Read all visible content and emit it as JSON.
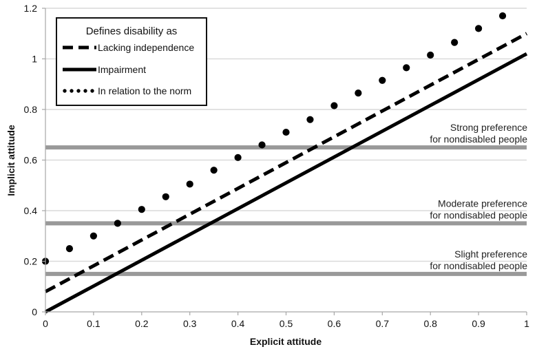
{
  "chart_data": {
    "type": "line",
    "xlabel": "Explicit attitude",
    "ylabel": "Implicit attitude",
    "xlim": [
      0,
      1
    ],
    "ylim": [
      0,
      1.2
    ],
    "x_ticks": [
      "0",
      "0.1",
      "0.2",
      "0.3",
      "0.4",
      "0.5",
      "0.6",
      "0.7",
      "0.8",
      "0.9",
      "1"
    ],
    "y_ticks": [
      "0",
      "0.2",
      "0.4",
      "0.6",
      "0.8",
      "1",
      "1.2"
    ],
    "grid": "horizontal",
    "legend": {
      "title": "Defines disability as",
      "placement": "top-left"
    },
    "series": [
      {
        "name": "Lacking independence",
        "style": "dashed",
        "color": "#000000",
        "x": [
          0,
          1
        ],
        "y": [
          0.08,
          1.1
        ]
      },
      {
        "name": "Impairment",
        "style": "solid",
        "color": "#000000",
        "x": [
          0,
          1
        ],
        "y": [
          0.0,
          1.02
        ]
      },
      {
        "name": "In relation to the norm",
        "style": "dotted",
        "color": "#000000",
        "x": [
          0,
          0.05,
          0.1,
          0.15,
          0.2,
          0.25,
          0.3,
          0.35,
          0.4,
          0.45,
          0.5,
          0.55,
          0.6,
          0.65,
          0.7,
          0.75,
          0.8,
          0.85,
          0.9,
          0.95
        ],
        "y": [
          0.2,
          0.25,
          0.3,
          0.35,
          0.405,
          0.455,
          0.505,
          0.56,
          0.61,
          0.66,
          0.71,
          0.76,
          0.815,
          0.865,
          0.915,
          0.965,
          1.015,
          1.065,
          1.12,
          1.17
        ]
      }
    ],
    "reference_lines": [
      {
        "y": 0.65,
        "color": "#999999",
        "label_line1": "Strong preference",
        "label_line2": "for nondisabled people"
      },
      {
        "y": 0.35,
        "color": "#999999",
        "label_line1": "Moderate preference",
        "label_line2": "for nondisabled people"
      },
      {
        "y": 0.15,
        "color": "#999999",
        "label_line1": "Slight preference",
        "label_line2": "for nondisabled people"
      }
    ]
  }
}
